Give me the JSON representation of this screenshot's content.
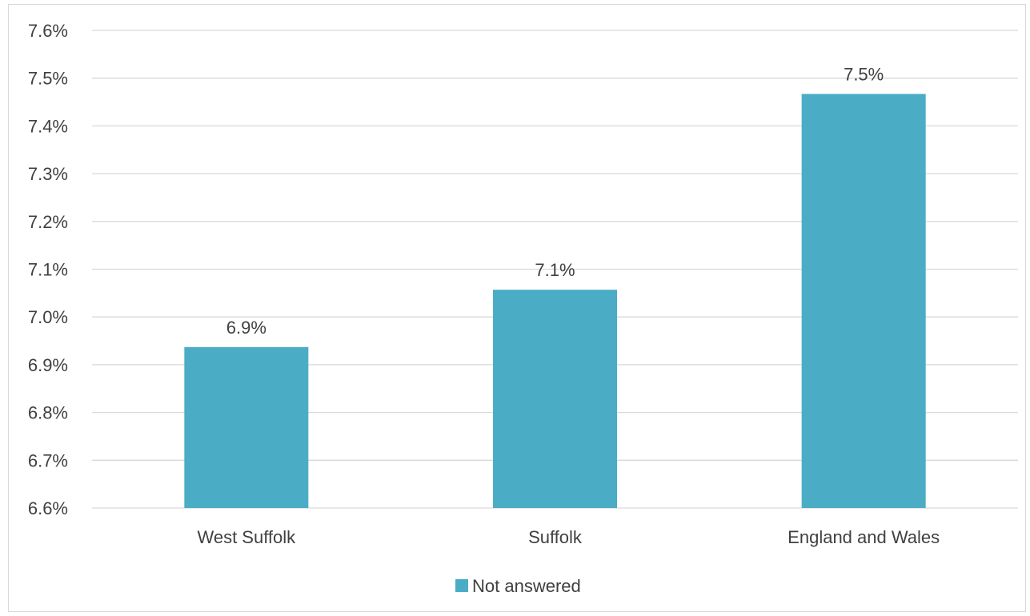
{
  "chart_data": {
    "type": "bar",
    "categories": [
      "West Suffolk",
      "Suffolk",
      "England and Wales"
    ],
    "series": [
      {
        "name": "Not answered",
        "values": [
          6.937,
          7.057,
          7.467
        ],
        "labels": [
          "6.9%",
          "7.1%",
          "7.5%"
        ],
        "color": "#4BACC6"
      }
    ],
    "yticks": [
      "6.6%",
      "6.7%",
      "6.8%",
      "6.9%",
      "7.0%",
      "7.1%",
      "7.2%",
      "7.3%",
      "7.4%",
      "7.5%",
      "7.6%"
    ],
    "ylim": [
      6.6,
      7.6
    ],
    "grid": true,
    "legend_position": "bottom",
    "gridline_color": "#d9d9d9"
  }
}
